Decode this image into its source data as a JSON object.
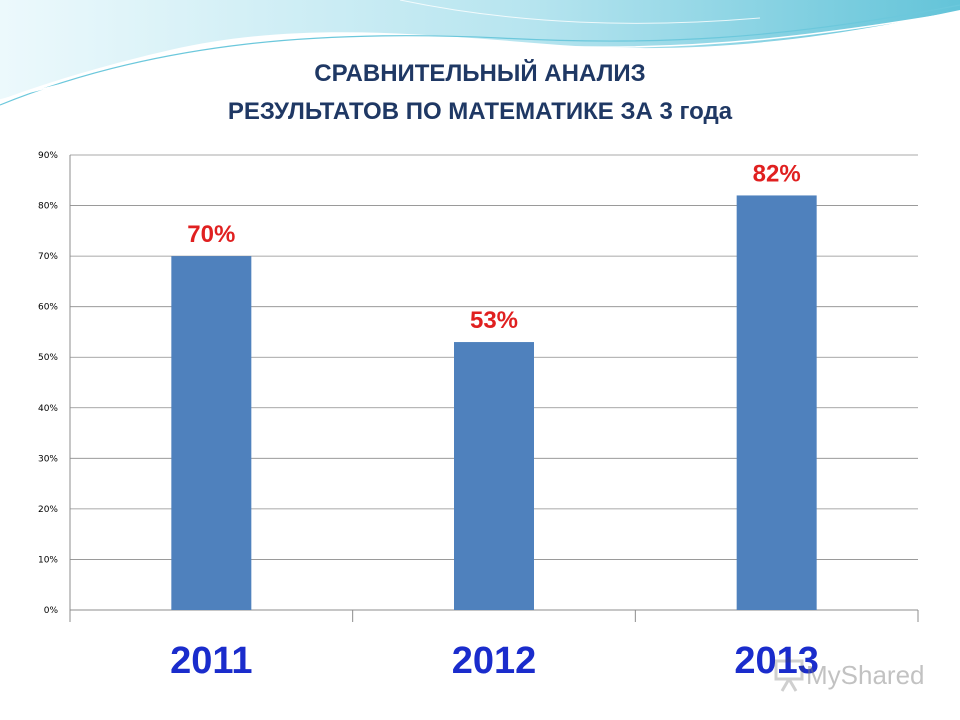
{
  "title": {
    "line1": "СРАВНИТЕЛЬНЫЙ АНАЛИЗ",
    "line2": "РЕЗУЛЬТАТОВ ПО МАТЕМАТИКЕ ЗА 3 года"
  },
  "colors": {
    "bar": "#4f81bd",
    "data_label": "#e02020",
    "category_label": "#1a2ccc",
    "title": "#1f3864",
    "wave_light": "#bfeaf2",
    "wave_dark": "#3cb4cf"
  },
  "chart_data": {
    "type": "bar",
    "title": "СРАВНИТЕЛЬНЫЙ АНАЛИЗ РЕЗУЛЬТАТОВ ПО МАТЕМАТИКЕ ЗА 3 года",
    "categories": [
      "2011",
      "2012",
      "2013"
    ],
    "values": [
      70,
      53,
      82
    ],
    "data_labels": [
      "70%",
      "53%",
      "82%"
    ],
    "ylim": [
      0,
      90
    ],
    "yticks": [
      0,
      10,
      20,
      30,
      40,
      50,
      60,
      70,
      80,
      90
    ],
    "ytick_labels": [
      "0%",
      "10%",
      "20%",
      "30%",
      "40%",
      "50%",
      "60%",
      "70%",
      "80%",
      "90%"
    ],
    "xlabel": "",
    "ylabel": "",
    "grid": true,
    "legend": "none"
  },
  "watermark": {
    "text": "MyShared",
    "icon": "presentation-board-icon"
  }
}
